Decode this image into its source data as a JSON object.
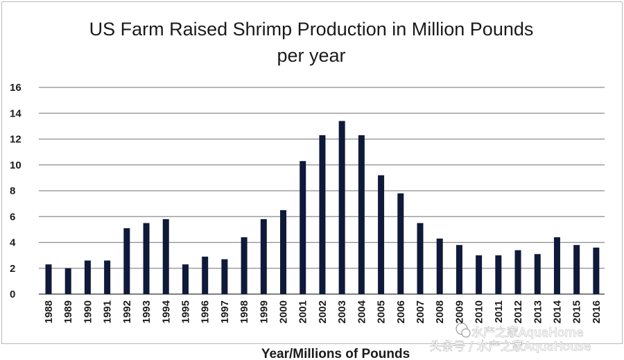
{
  "chart_data": {
    "type": "bar",
    "title": "US Farm Raised Shrimp Production in Million Pounds",
    "subtitle": "per year",
    "xlabel": "Year/Millions of Pounds",
    "ylabel": "",
    "ylim": [
      0,
      16
    ],
    "yticks": [
      0,
      2,
      4,
      6,
      8,
      10,
      12,
      14,
      16
    ],
    "grid": true,
    "bar_color": "#0f1a3a",
    "categories": [
      "1988",
      "1989",
      "1990",
      "1991",
      "1992",
      "1993",
      "1994",
      "1995",
      "1996",
      "1997",
      "1998",
      "1999",
      "2000",
      "2001",
      "2002",
      "2003",
      "2004",
      "2005",
      "2006",
      "2007",
      "2008",
      "2009",
      "2010",
      "2011",
      "2012",
      "2013",
      "2014",
      "2015",
      "2016"
    ],
    "values": [
      2.3,
      2.0,
      2.6,
      2.6,
      5.1,
      5.5,
      5.8,
      2.3,
      2.9,
      2.7,
      4.4,
      5.8,
      6.5,
      10.3,
      12.3,
      13.4,
      12.3,
      9.2,
      7.8,
      5.5,
      4.3,
      3.8,
      3.0,
      3.0,
      3.4,
      3.1,
      4.4,
      3.8,
      3.6
    ]
  },
  "watermark": {
    "line1": "水产之家AquaHome",
    "line2": "头条号 / 水产之家AquaHouse"
  }
}
